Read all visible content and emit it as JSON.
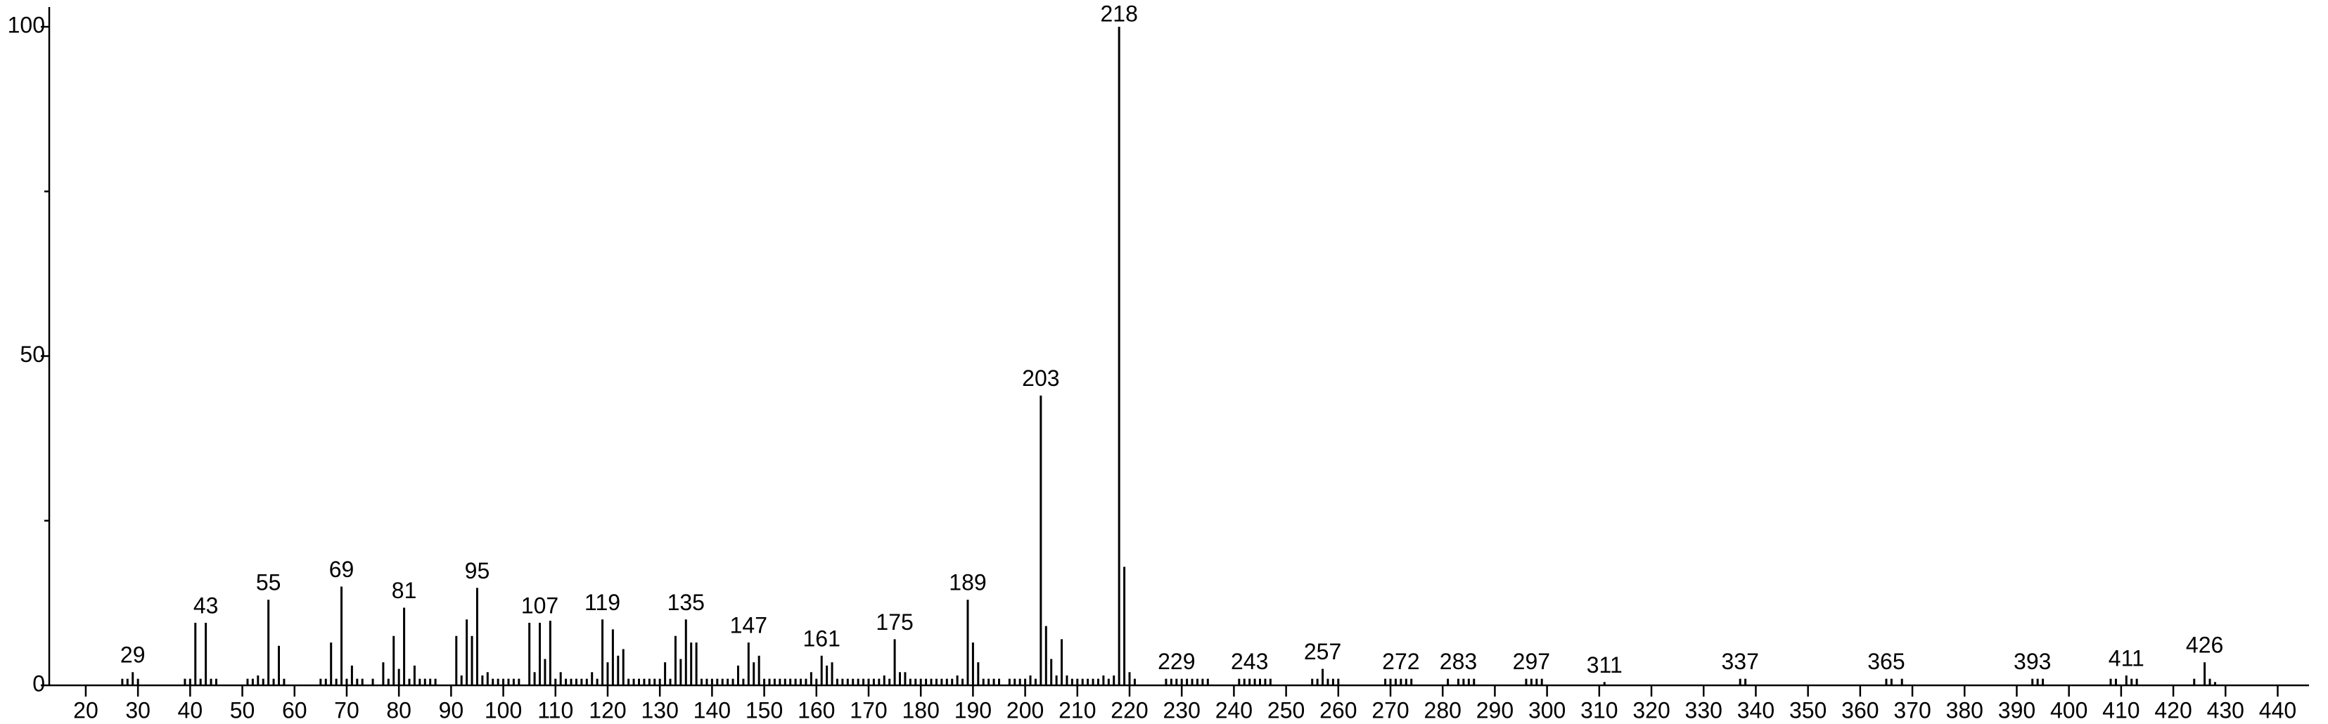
{
  "chart_data": {
    "type": "stick",
    "x": [
      27,
      28,
      29,
      30,
      39,
      40,
      41,
      42,
      43,
      44,
      45,
      51,
      52,
      53,
      54,
      55,
      56,
      57,
      58,
      65,
      66,
      67,
      68,
      69,
      70,
      71,
      72,
      73,
      75,
      77,
      78,
      79,
      80,
      81,
      82,
      83,
      84,
      85,
      86,
      87,
      91,
      92,
      93,
      94,
      95,
      96,
      97,
      98,
      99,
      100,
      101,
      102,
      103,
      105,
      106,
      107,
      108,
      109,
      110,
      111,
      112,
      113,
      114,
      115,
      116,
      117,
      118,
      119,
      120,
      121,
      122,
      123,
      124,
      125,
      126,
      127,
      128,
      129,
      130,
      131,
      132,
      133,
      134,
      135,
      136,
      137,
      138,
      139,
      140,
      141,
      142,
      143,
      144,
      145,
      146,
      147,
      148,
      149,
      150,
      151,
      152,
      153,
      154,
      155,
      156,
      157,
      158,
      159,
      160,
      161,
      162,
      163,
      164,
      165,
      166,
      167,
      168,
      169,
      170,
      171,
      172,
      173,
      174,
      175,
      176,
      177,
      178,
      179,
      180,
      181,
      182,
      183,
      184,
      185,
      186,
      187,
      188,
      189,
      190,
      191,
      192,
      193,
      194,
      195,
      197,
      198,
      199,
      200,
      201,
      202,
      203,
      204,
      205,
      206,
      207,
      208,
      209,
      210,
      211,
      212,
      213,
      214,
      215,
      216,
      217,
      218,
      219,
      220,
      221,
      227,
      228,
      229,
      230,
      231,
      232,
      233,
      234,
      235,
      241,
      242,
      243,
      244,
      245,
      246,
      247,
      255,
      256,
      257,
      258,
      259,
      260,
      269,
      270,
      271,
      272,
      273,
      274,
      281,
      283,
      284,
      285,
      286,
      296,
      297,
      298,
      299,
      311,
      337,
      338,
      365,
      366,
      368,
      393,
      394,
      395,
      408,
      409,
      411,
      412,
      413,
      424,
      426,
      427,
      428
    ],
    "values": [
      1,
      1,
      2,
      1,
      1,
      1,
      9.5,
      1,
      9.5,
      1,
      1,
      1,
      1,
      1.5,
      1,
      13,
      1,
      6,
      1,
      1,
      1,
      6.5,
      1,
      15,
      1,
      3,
      1,
      1,
      1,
      3.5,
      1,
      7.5,
      2.5,
      11.8,
      1,
      3,
      1,
      1,
      1,
      1,
      7.5,
      1.5,
      10,
      7.5,
      14.8,
      1.5,
      2,
      1,
      1,
      1,
      1,
      1,
      1,
      9.5,
      2,
      9.5,
      4,
      9.8,
      1,
      2,
      1,
      1,
      1,
      1,
      1,
      2,
      1,
      10,
      3.5,
      8.5,
      4.5,
      5.5,
      1,
      1,
      1,
      1,
      1,
      1,
      1,
      3.5,
      1,
      7.5,
      4,
      10,
      6.5,
      6.5,
      1,
      1,
      1,
      1,
      1,
      1,
      1,
      3,
      1,
      6.5,
      3.5,
      4.5,
      1,
      1,
      1,
      1,
      1,
      1,
      1,
      1,
      1,
      2,
      1,
      4.5,
      3,
      3.5,
      1,
      1,
      1,
      1,
      1,
      1,
      1,
      1,
      1,
      1.5,
      1,
      7,
      2,
      2,
      1,
      1,
      1,
      1,
      1,
      1,
      1,
      1,
      1,
      1.5,
      1,
      13,
      6.5,
      3.5,
      1,
      1,
      1,
      1,
      1,
      1,
      1,
      1,
      1.5,
      1,
      44,
      9,
      4,
      1.5,
      7,
      1.5,
      1,
      1,
      1,
      1,
      1,
      1,
      1.5,
      1,
      1.5,
      100,
      18,
      2,
      1,
      1,
      1,
      1,
      1,
      1,
      1,
      1,
      1,
      1,
      1,
      1,
      1,
      1,
      1,
      1,
      1,
      1,
      1,
      2.5,
      1,
      1,
      1,
      1,
      1,
      1,
      1,
      1,
      1,
      1,
      1,
      1,
      1,
      1,
      1,
      1,
      1,
      1,
      0.5,
      1,
      1,
      1,
      1,
      1,
      1,
      1,
      1,
      1,
      1,
      1.5,
      1,
      1,
      1,
      3.5,
      1,
      0.5
    ],
    "peak_labels": [
      29,
      43,
      55,
      69,
      81,
      95,
      107,
      119,
      135,
      147,
      161,
      175,
      189,
      203,
      218,
      229,
      243,
      257,
      272,
      283,
      297,
      311,
      337,
      365,
      393,
      411,
      426
    ],
    "color": "#000000",
    "xlim": [
      13,
      446
    ],
    "ylim": [
      0,
      103
    ],
    "xticks": [
      20,
      30,
      40,
      50,
      60,
      70,
      80,
      90,
      100,
      110,
      120,
      130,
      140,
      150,
      160,
      170,
      180,
      190,
      200,
      210,
      220,
      230,
      240,
      250,
      260,
      270,
      280,
      290,
      300,
      310,
      320,
      330,
      340,
      350,
      360,
      370,
      380,
      390,
      400,
      410,
      420,
      430,
      440
    ],
    "yticks": [
      0,
      50,
      100
    ],
    "yminor_ticks": [
      25,
      75
    ]
  }
}
